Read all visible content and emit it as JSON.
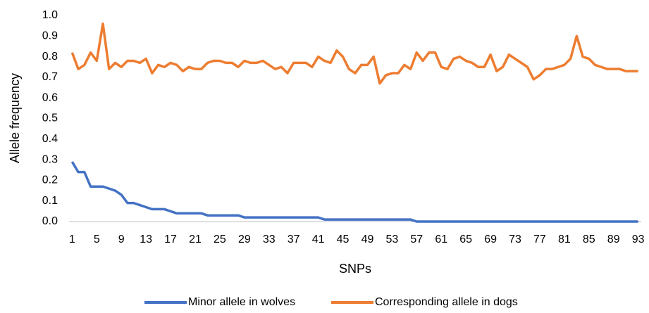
{
  "chart_data": {
    "type": "line",
    "x_label": "SNPs",
    "y_label": "Allele frequency",
    "x": [
      1,
      2,
      3,
      4,
      5,
      6,
      7,
      8,
      9,
      10,
      11,
      12,
      13,
      14,
      15,
      16,
      17,
      18,
      19,
      20,
      21,
      22,
      23,
      24,
      25,
      26,
      27,
      28,
      29,
      30,
      31,
      32,
      33,
      34,
      35,
      36,
      37,
      38,
      39,
      40,
      41,
      42,
      43,
      44,
      45,
      46,
      47,
      48,
      49,
      50,
      51,
      52,
      53,
      54,
      55,
      56,
      57,
      58,
      59,
      60,
      61,
      62,
      63,
      64,
      65,
      66,
      67,
      68,
      69,
      70,
      71,
      72,
      73,
      74,
      75,
      76,
      77,
      78,
      79,
      80,
      81,
      82,
      83,
      84,
      85,
      86,
      87,
      88,
      89,
      90,
      91,
      92,
      93
    ],
    "xlim": [
      0.5,
      93.5
    ],
    "xticks": [
      1,
      5,
      9,
      13,
      17,
      21,
      25,
      29,
      33,
      37,
      41,
      45,
      49,
      53,
      57,
      61,
      65,
      69,
      73,
      77,
      81,
      85,
      89,
      93
    ],
    "ylim": [
      0,
      1
    ],
    "yticks": [
      {
        "value": 0,
        "label": "0.0"
      },
      0.1,
      0.2,
      0.3,
      0.4,
      0.5,
      0.6,
      0.7,
      0.8,
      0.9,
      {
        "value": 1,
        "label": "1.0"
      }
    ],
    "grid": false,
    "legend": "bottom",
    "series": [
      {
        "name": "Minor allele in wolves",
        "color": "#4472c4",
        "values": [
          0.29,
          0.24,
          0.24,
          0.17,
          0.17,
          0.17,
          0.16,
          0.15,
          0.13,
          0.09,
          0.09,
          0.08,
          0.07,
          0.06,
          0.06,
          0.06,
          0.05,
          0.04,
          0.04,
          0.04,
          0.04,
          0.04,
          0.03,
          0.03,
          0.03,
          0.03,
          0.03,
          0.03,
          0.02,
          0.02,
          0.02,
          0.02,
          0.02,
          0.02,
          0.02,
          0.02,
          0.02,
          0.02,
          0.02,
          0.02,
          0.02,
          0.01,
          0.01,
          0.01,
          0.01,
          0.01,
          0.01,
          0.01,
          0.01,
          0.01,
          0.01,
          0.01,
          0.01,
          0.01,
          0.01,
          0.01,
          0,
          0,
          0,
          0,
          0,
          0,
          0,
          0,
          0,
          0,
          0,
          0,
          0,
          0,
          0,
          0,
          0,
          0,
          0,
          0,
          0,
          0,
          0,
          0,
          0,
          0,
          0,
          0,
          0,
          0,
          0,
          0,
          0,
          0,
          0,
          0,
          0
        ]
      },
      {
        "name": "Corresponding allele in dogs",
        "color": "#ed7d31",
        "values": [
          0.82,
          0.74,
          0.76,
          0.82,
          0.78,
          0.96,
          0.74,
          0.77,
          0.75,
          0.78,
          0.78,
          0.77,
          0.79,
          0.72,
          0.76,
          0.75,
          0.77,
          0.76,
          0.73,
          0.75,
          0.74,
          0.74,
          0.77,
          0.78,
          0.78,
          0.77,
          0.77,
          0.75,
          0.78,
          0.77,
          0.77,
          0.78,
          0.76,
          0.74,
          0.75,
          0.72,
          0.77,
          0.77,
          0.77,
          0.75,
          0.8,
          0.78,
          0.77,
          0.83,
          0.8,
          0.74,
          0.72,
          0.76,
          0.76,
          0.8,
          0.67,
          0.71,
          0.72,
          0.72,
          0.76,
          0.74,
          0.82,
          0.78,
          0.82,
          0.82,
          0.75,
          0.74,
          0.79,
          0.8,
          0.78,
          0.77,
          0.75,
          0.75,
          0.81,
          0.73,
          0.75,
          0.81,
          0.79,
          0.77,
          0.75,
          0.69,
          0.71,
          0.74,
          0.74,
          0.75,
          0.76,
          0.79,
          0.9,
          0.8,
          0.79,
          0.76,
          0.75,
          0.74,
          0.74,
          0.74,
          0.73,
          0.73,
          0.73
        ]
      }
    ]
  }
}
